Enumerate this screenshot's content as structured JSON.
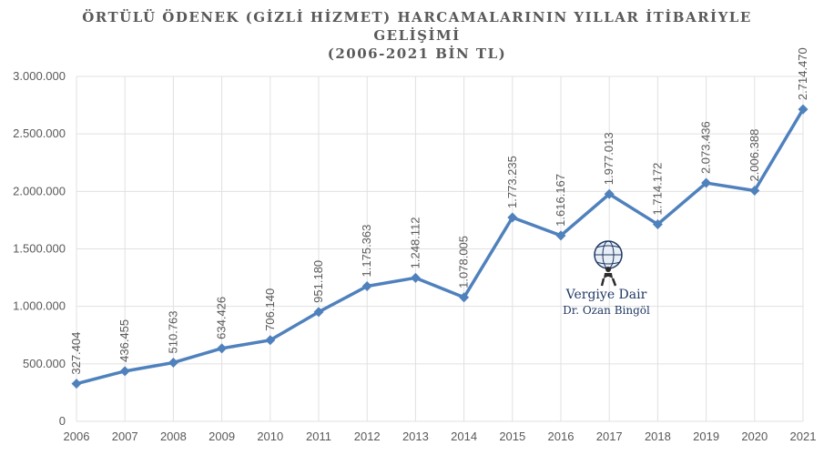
{
  "chart_data": {
    "type": "line",
    "title_lines": [
      "ÖRTÜLÜ ÖDENEK (GİZLİ HİZMET) HARCAMALARININ YILLAR İTİBARİYLE",
      "GELİŞİMİ",
      "(2006-2021 BİN TL)"
    ],
    "xlabel": "",
    "ylabel": "",
    "categories": [
      "2006",
      "2007",
      "2008",
      "2009",
      "2010",
      "2011",
      "2012",
      "2013",
      "2014",
      "2015",
      "2016",
      "2017",
      "2018",
      "2019",
      "2020",
      "2021"
    ],
    "series": [
      {
        "values": [
          327404,
          436455,
          510763,
          634426,
          706140,
          951180,
          1175363,
          1248112,
          1078005,
          1773235,
          1616167,
          1977013,
          1714172,
          2073436,
          2006388,
          2714470
        ],
        "labels": [
          "327.404",
          "436.455",
          "510.763",
          "634.426",
          "706.140",
          "951.180",
          "1.175.363",
          "1.248.112",
          "1.078.005",
          "1.773.235",
          "1.616.167",
          "1.977.013",
          "1.714.172",
          "2.073.436",
          "2.006.388",
          "2.714.470"
        ]
      }
    ],
    "ylim": [
      0,
      3000000
    ],
    "yticks": [
      0,
      500000,
      1000000,
      1500000,
      2000000,
      2500000,
      3000000
    ],
    "ytick_labels": [
      "0",
      "500.000",
      "1.000.000",
      "1.500.000",
      "2.000.000",
      "2.500.000",
      "3.000.000"
    ],
    "grid": true,
    "legend": "none",
    "colors": {
      "line": "#4f81bd",
      "grid": "#e0e0e0",
      "text": "#595959",
      "watermark": "#1f3864"
    }
  },
  "watermark": {
    "title": "Vergiye Dair",
    "subtitle": "Dr. Ozan Bingöl",
    "icon": "atlas-globe-icon"
  }
}
